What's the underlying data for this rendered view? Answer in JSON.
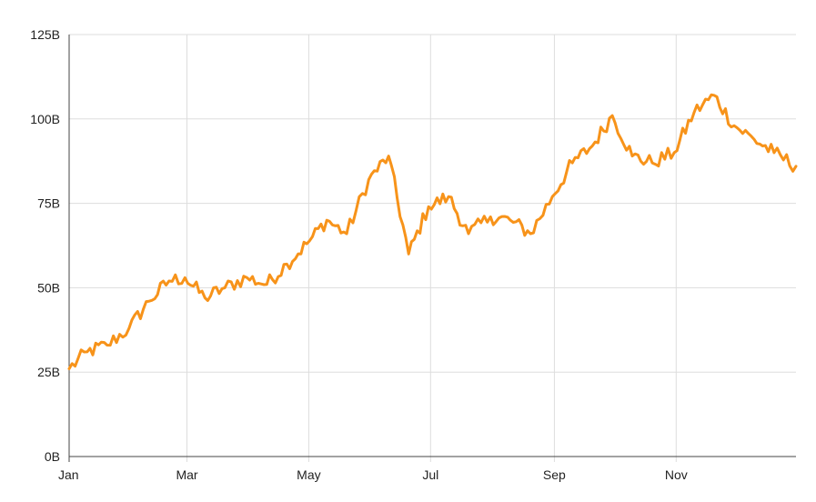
{
  "chart_data": {
    "type": "line",
    "title": "",
    "xlabel": "",
    "ylabel": "",
    "grid": true,
    "legend": "none",
    "x_tick_labels": [
      "Jan",
      "Mar",
      "May",
      "Jul",
      "Sep",
      "Nov"
    ],
    "x_tick_months": [
      0,
      2,
      4,
      6,
      8,
      10
    ],
    "y_tick_labels": [
      "0B",
      "25B",
      "50B",
      "75B",
      "100B",
      "125B"
    ],
    "y_tick_values": [
      0,
      25,
      50,
      75,
      100,
      125
    ],
    "ylim": [
      0,
      125
    ],
    "xlim": [
      "Jan 1",
      "Dec 31"
    ],
    "series": [
      {
        "color": "#F7931A",
        "x": [
          "Jan 1",
          "Jan 10",
          "Jan 20",
          "Jan 31",
          "Feb 10",
          "Feb 20",
          "Feb 28",
          "Mar 10",
          "Mar 20",
          "Mar 31",
          "Apr 10",
          "Apr 20",
          "Apr 30",
          "May 10",
          "May 20",
          "May 31",
          "Jun 10",
          "Jun 20",
          "Jun 30",
          "Jul 10",
          "Jul 20",
          "Jul 31",
          "Aug 10",
          "Aug 20",
          "Aug 31",
          "Sep 10",
          "Sep 20",
          "Sep 30",
          "Oct 10",
          "Oct 20",
          "Oct 31",
          "Nov 10",
          "Nov 20",
          "Nov 30",
          "Dec 10",
          "Dec 20",
          "Dec 31"
        ],
        "values": [
          26,
          31,
          33,
          38,
          46,
          52,
          53,
          47,
          50,
          53,
          51,
          57,
          63,
          70,
          66,
          82,
          89,
          60,
          74,
          77,
          66,
          71,
          70,
          66,
          77,
          87,
          92,
          101,
          89,
          87,
          90,
          102,
          107,
          98,
          94,
          90,
          86
        ]
      }
    ]
  }
}
